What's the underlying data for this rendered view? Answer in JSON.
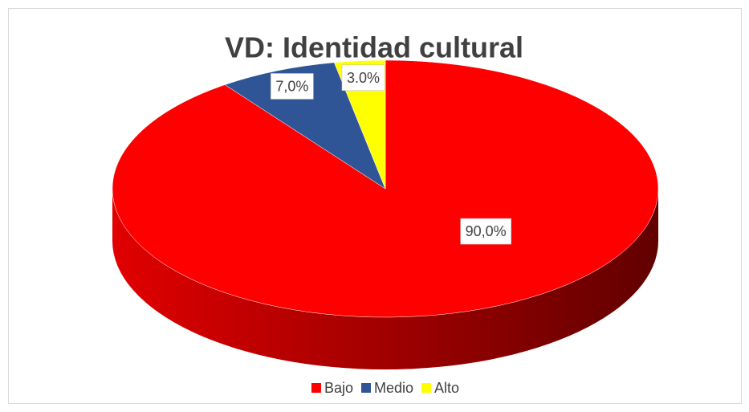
{
  "chart_data": {
    "type": "pie3d",
    "title": "VD: Identidad cultural",
    "categories": [
      "Bajo",
      "Medio",
      "Alto"
    ],
    "values": [
      90,
      7,
      3
    ],
    "value_labels": [
      "90,0%",
      "7,0%",
      "3.0%"
    ],
    "colors": [
      "#ff0000",
      "#2f5597",
      "#ffff00"
    ],
    "legend": "bottom"
  }
}
